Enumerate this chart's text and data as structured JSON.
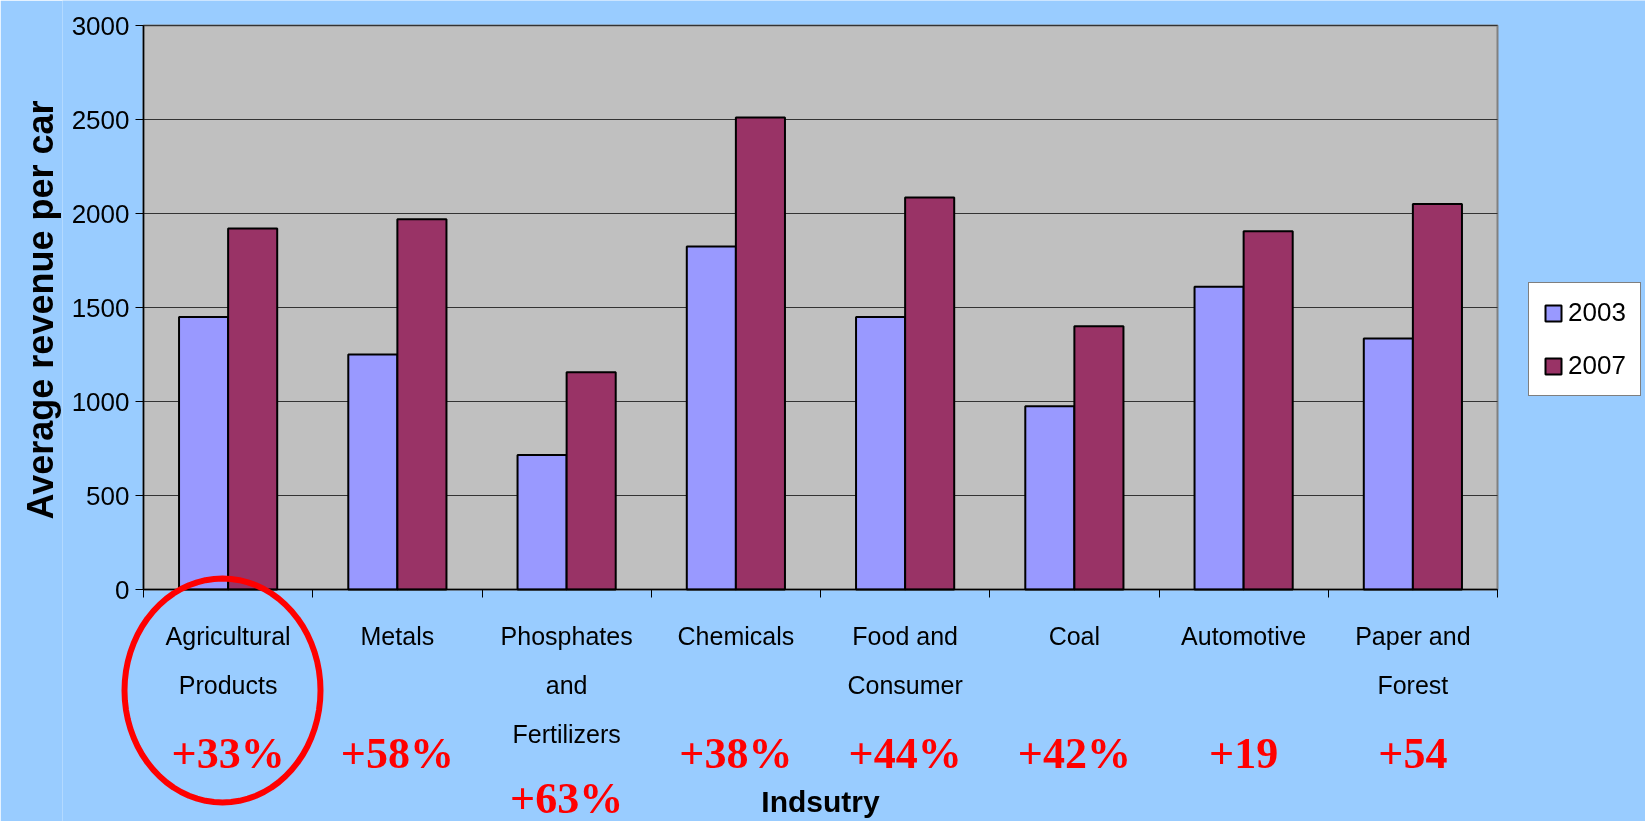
{
  "chart_data": {
    "type": "bar",
    "xlabel": "Indsutry",
    "ylabel": "Average revenue per car",
    "categories": [
      "Agricultural Products",
      "Metals",
      "Phosphates and Fertilizers",
      "Chemicals",
      "Food and Consumer",
      "Coal",
      "Automotive",
      "Paper and Forest"
    ],
    "series": [
      {
        "name": "2003",
        "color": "#9999ff",
        "values": [
          1450,
          1250,
          715,
          1825,
          1450,
          975,
          1610,
          1335
        ]
      },
      {
        "name": "2007",
        "color": "#993366",
        "values": [
          1920,
          1970,
          1155,
          2510,
          2085,
          1400,
          1905,
          2050
        ]
      }
    ],
    "ylim": [
      0,
      3000
    ],
    "yticks": [
      0,
      500,
      1000,
      1500,
      2000,
      2500,
      3000
    ],
    "grid": "y",
    "legend": "right",
    "annotations": [
      "+33%",
      "+58%",
      "+63%",
      "+38%",
      "+44%",
      "+42%",
      "+19",
      "+54"
    ]
  }
}
